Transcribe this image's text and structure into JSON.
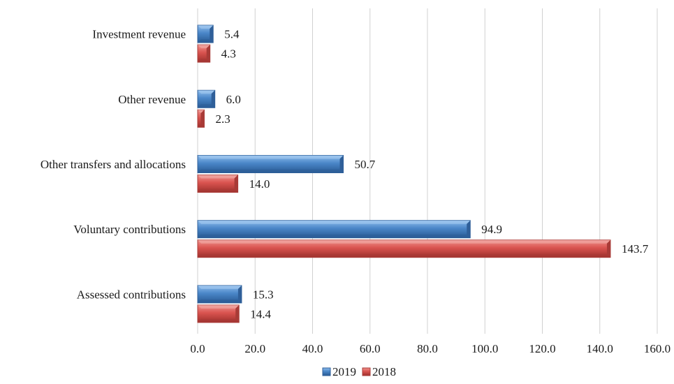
{
  "chart_data": {
    "type": "bar",
    "orientation": "horizontal",
    "title": "",
    "xlabel": "",
    "ylabel": "",
    "xlim": [
      0,
      160
    ],
    "x_ticks": [
      "0.0",
      "20.0",
      "40.0",
      "60.0",
      "80.0",
      "100.0",
      "120.0",
      "140.0",
      "160.0"
    ],
    "categories": [
      "Investment revenue",
      "Other revenue",
      "Other transfers and allocations",
      "Voluntary contributions",
      "Assessed contributions"
    ],
    "series": [
      {
        "name": "2019",
        "color": "#4a86c8",
        "values": [
          5.4,
          6.0,
          50.7,
          94.9,
          15.3
        ],
        "labels": [
          "5.4",
          "6.0",
          "50.7",
          "94.9",
          "15.3"
        ]
      },
      {
        "name": "2018",
        "color": "#d9534f",
        "values": [
          4.3,
          2.3,
          14.0,
          143.7,
          14.4
        ],
        "labels": [
          "4.3",
          "2.3",
          "14.0",
          "143.7",
          "14.4"
        ]
      }
    ],
    "grid": "vertical",
    "legend_position": "bottom-center"
  }
}
